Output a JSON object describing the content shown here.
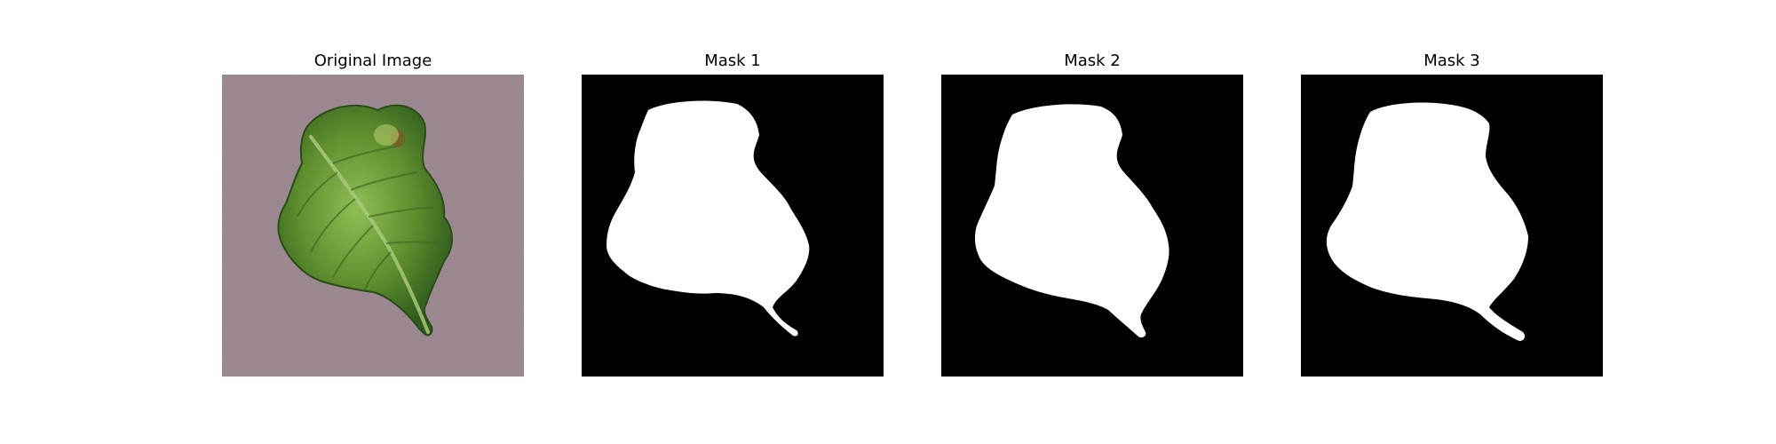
{
  "figure": {
    "panels": [
      {
        "title": "Original Image",
        "content": "leaf-photo"
      },
      {
        "title": "Mask 1",
        "content": "binary-mask"
      },
      {
        "title": "Mask 2",
        "content": "binary-mask"
      },
      {
        "title": "Mask 3",
        "content": "binary-mask"
      }
    ]
  },
  "colors": {
    "background": "#ffffff",
    "photo_background": "#9d8a92",
    "leaf_dark": "#2f5a1e",
    "leaf_mid": "#5f8f2e",
    "leaf_light": "#8fbd55",
    "mask_background": "#000000",
    "mask_foreground": "#ffffff"
  }
}
